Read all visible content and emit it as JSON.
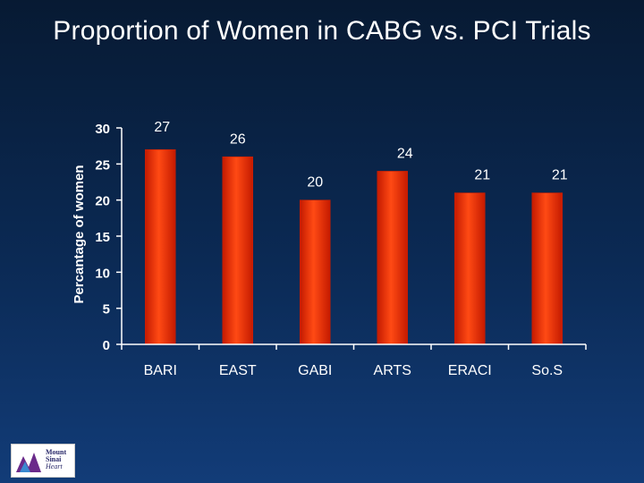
{
  "slide": {
    "title": "Proportion of Women in CABG vs. PCI Trials"
  },
  "chart_data": {
    "type": "bar",
    "title": "Proportion of Women in CABG vs. PCI Trials",
    "xlabel": "",
    "ylabel": "Percantage of women",
    "categories": [
      "BARI",
      "EAST",
      "GABI",
      "ARTS",
      "ERACI",
      "So.S"
    ],
    "values": [
      27,
      26,
      20,
      24,
      21,
      21
    ],
    "data_labels": [
      "27",
      "26",
      "20",
      "24",
      "21",
      "21"
    ],
    "ylim": [
      0,
      30
    ],
    "yticks": [
      "0",
      "5",
      "10",
      "15",
      "20",
      "25",
      "30"
    ],
    "grid": false,
    "legend": "none",
    "bar_color": "#ff3300",
    "bar_edge_color": "#cc1e00"
  },
  "logo": {
    "line1": "Mount",
    "line2": "Sinai",
    "line3": "Heart"
  },
  "colors": {
    "background_top": "#071a33",
    "background_bottom": "#123c78",
    "text": "#ffffff",
    "axis": "#ffffff"
  }
}
